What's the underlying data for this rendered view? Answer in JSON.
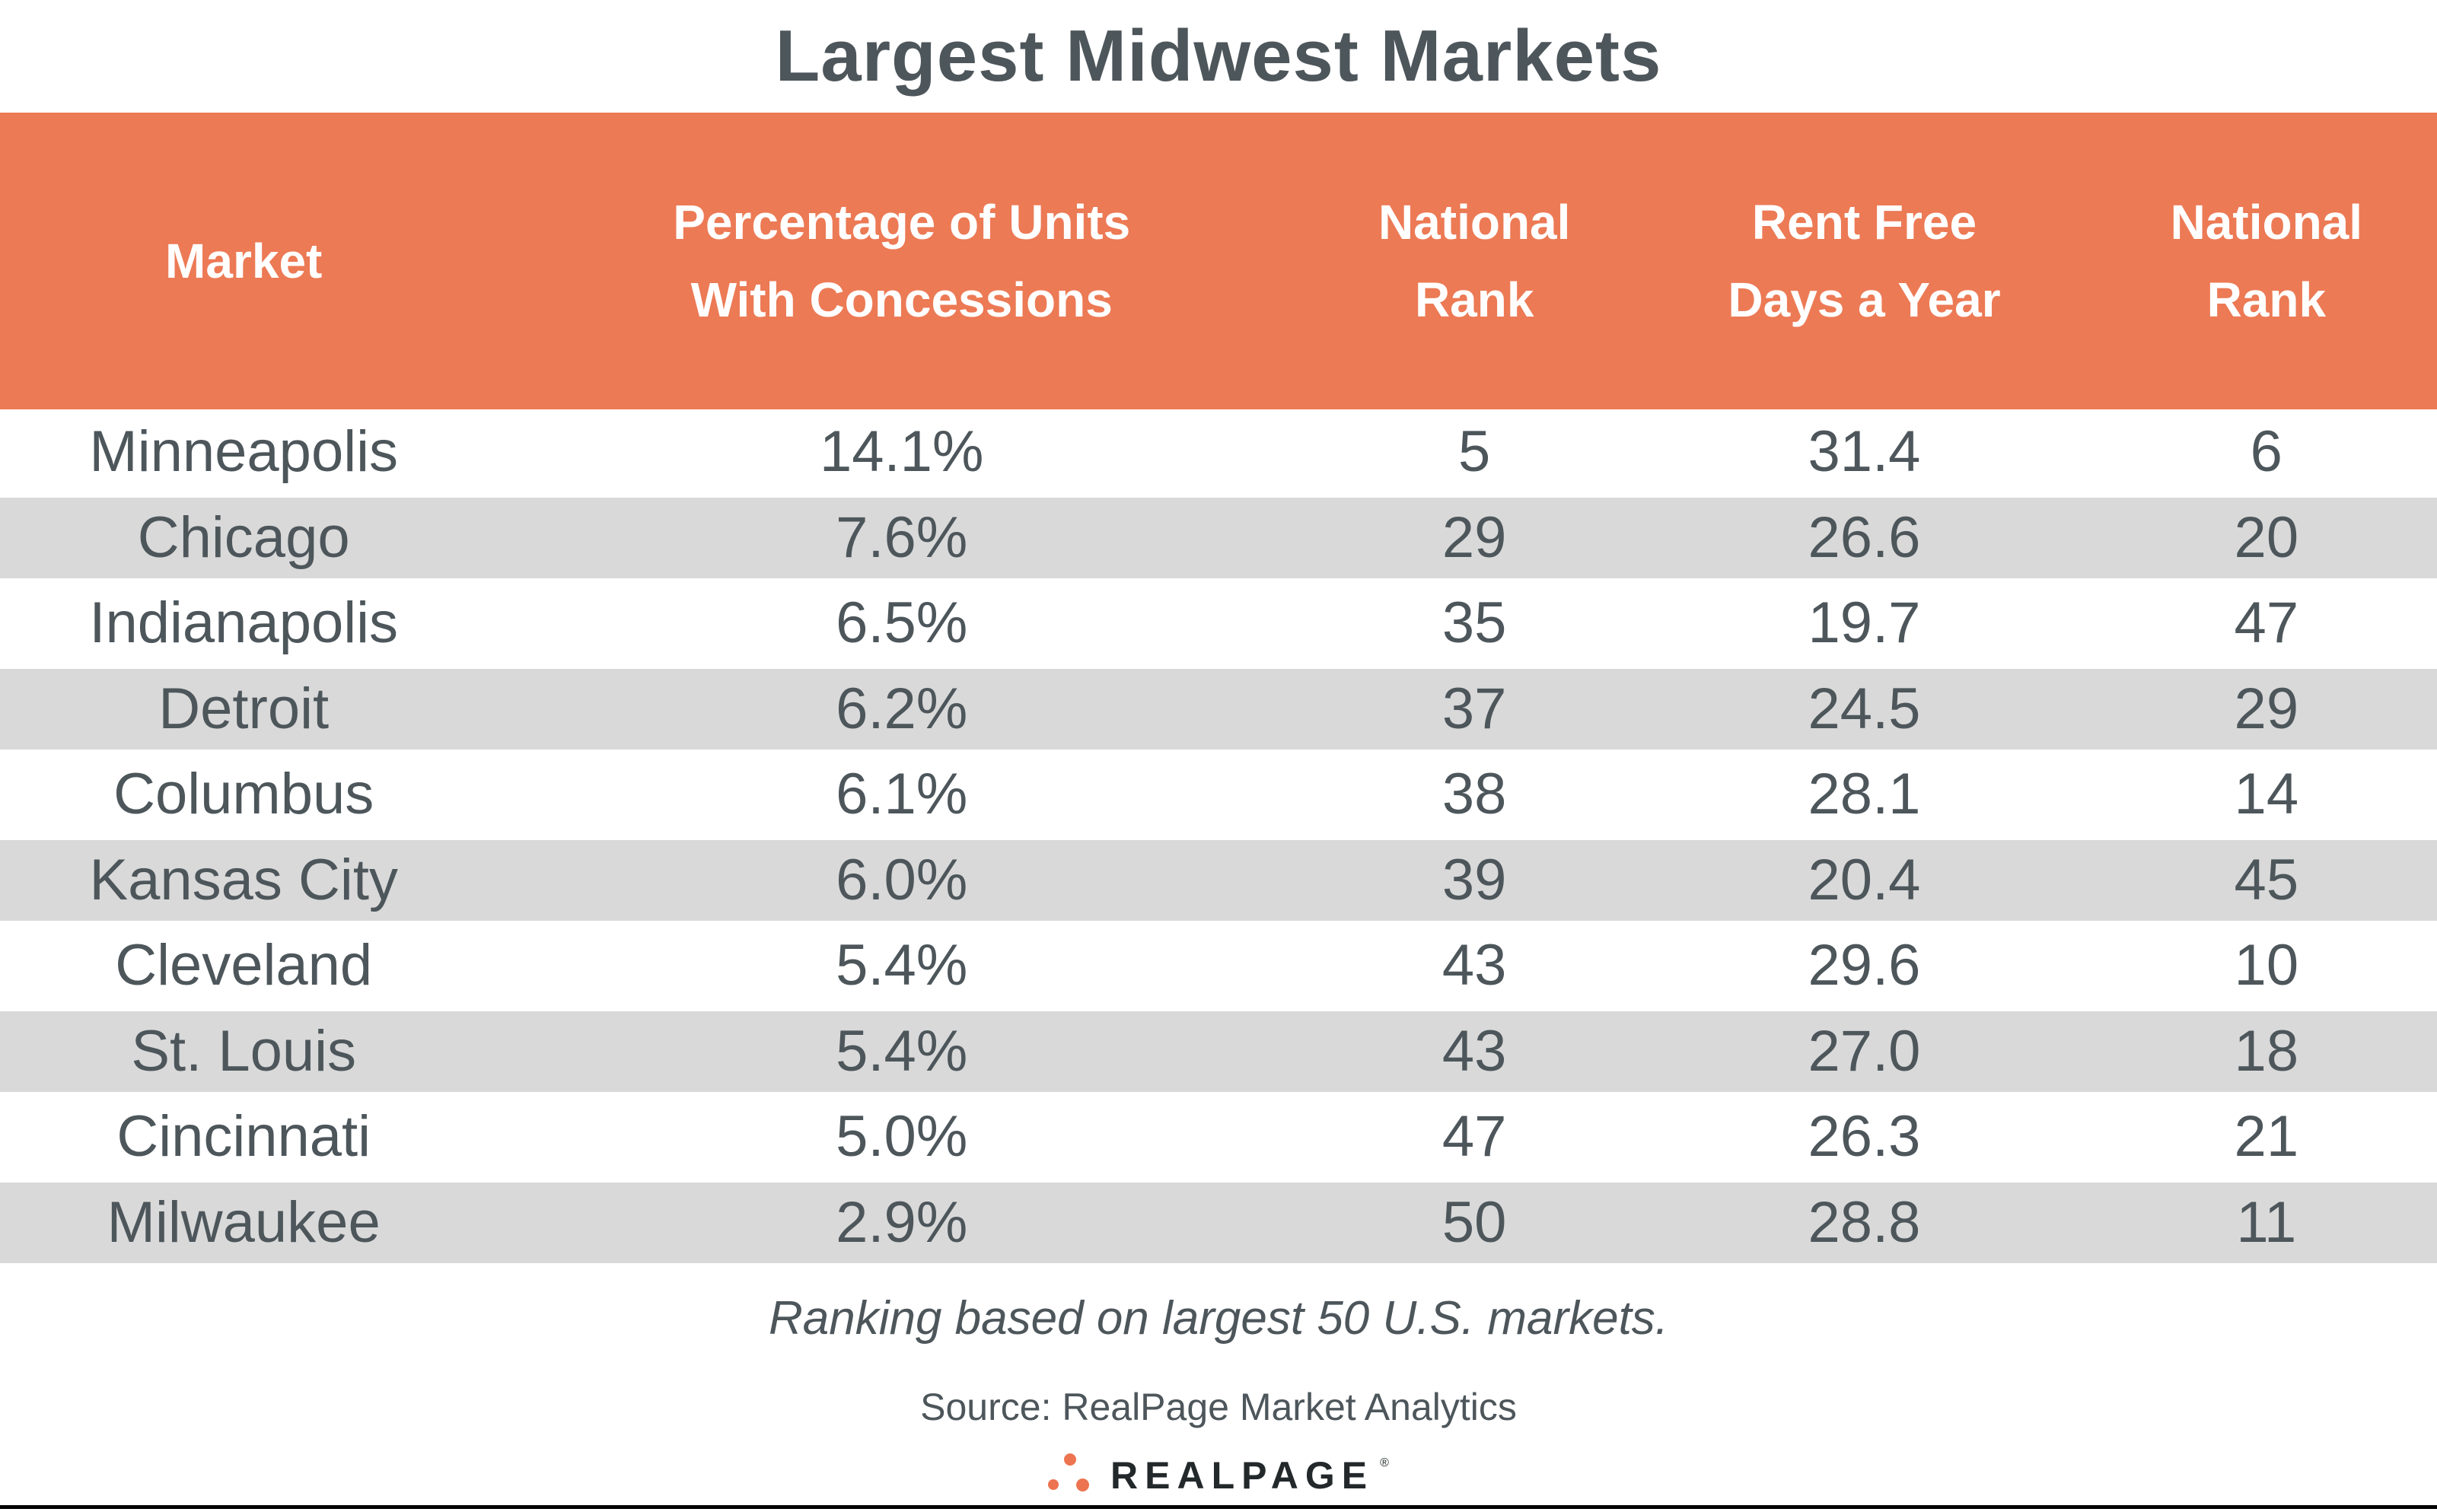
{
  "title": "Largest Midwest Markets",
  "header": {
    "columns": [
      {
        "line1": "Market",
        "line2": ""
      },
      {
        "line1": "Percentage of Units",
        "line2": "With Concessions"
      },
      {
        "line1": "National",
        "line2": "Rank"
      },
      {
        "line1": "Rent Free",
        "line2": "Days a Year"
      },
      {
        "line1": "National",
        "line2": "Rank"
      }
    ]
  },
  "rows": [
    [
      "Minneapolis",
      "14.1%",
      "5",
      "31.4",
      "6"
    ],
    [
      "Chicago",
      "7.6%",
      "29",
      "26.6",
      "20"
    ],
    [
      "Indianapolis",
      "6.5%",
      "35",
      "19.7",
      "47"
    ],
    [
      "Detroit",
      "6.2%",
      "37",
      "24.5",
      "29"
    ],
    [
      "Columbus",
      "6.1%",
      "38",
      "28.1",
      "14"
    ],
    [
      "Kansas City",
      "6.0%",
      "39",
      "20.4",
      "45"
    ],
    [
      "Cleveland",
      "5.4%",
      "43",
      "29.6",
      "10"
    ],
    [
      "St. Louis",
      "5.4%",
      "43",
      "27.0",
      "18"
    ],
    [
      "Cincinnati",
      "5.0%",
      "47",
      "26.3",
      "21"
    ],
    [
      "Milwaukee",
      "2.9%",
      "50",
      "28.8",
      "11"
    ]
  ],
  "note": "Ranking based on largest 50 U.S. markets.",
  "source": "Source: RealPage Market Analytics",
  "logo": {
    "text": "REALPAGE",
    "registered": "®"
  },
  "colors": {
    "header_bg": "#EC7A55",
    "row_alt": "#D9D9D9",
    "text": "#4D565B",
    "title": "#4D565B",
    "logo_text": "#23282B",
    "dot_orange": "#ED7450",
    "bottom_line": "#000000"
  },
  "chart_data": {
    "type": "table",
    "title": "Largest Midwest Markets",
    "columns": [
      "Market",
      "Percentage of Units With Concessions",
      "National Rank",
      "Rent Free Days a Year",
      "National Rank"
    ],
    "rows": [
      [
        "Minneapolis",
        14.1,
        5,
        31.4,
        6
      ],
      [
        "Chicago",
        7.6,
        29,
        26.6,
        20
      ],
      [
        "Indianapolis",
        6.5,
        35,
        19.7,
        47
      ],
      [
        "Detroit",
        6.2,
        37,
        24.5,
        29
      ],
      [
        "Columbus",
        6.1,
        38,
        28.1,
        14
      ],
      [
        "Kansas City",
        6.0,
        39,
        20.4,
        45
      ],
      [
        "Cleveland",
        5.4,
        43,
        29.6,
        10
      ],
      [
        "St. Louis",
        5.4,
        43,
        27.0,
        18
      ],
      [
        "Cincinnati",
        5.0,
        47,
        26.3,
        21
      ],
      [
        "Milwaukee",
        2.9,
        50,
        28.8,
        11
      ]
    ],
    "units": {
      "Percentage of Units With Concessions": "%",
      "Rent Free Days a Year": "days"
    },
    "note": "Ranking based on largest 50 U.S. markets.",
    "source": "Source: RealPage Market Analytics"
  }
}
